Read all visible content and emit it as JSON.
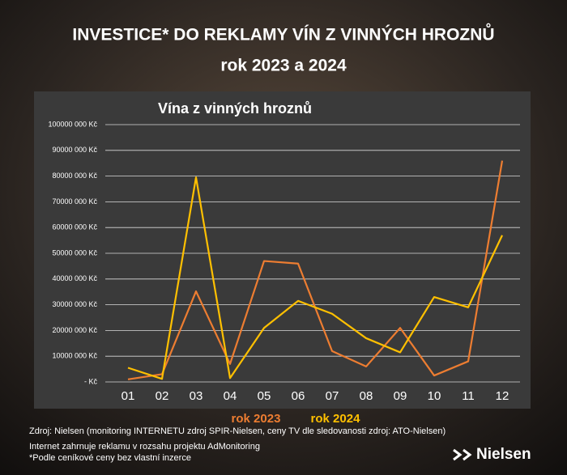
{
  "header": {
    "title": "INVESTICE* DO REKLAMY VÍN Z VINNÝCH HROZNŮ",
    "subtitle": "rok 2023 a 2024"
  },
  "chart_data": {
    "type": "line",
    "title": "Vína z vinných hroznů",
    "categories": [
      "01",
      "02",
      "03",
      "04",
      "05",
      "06",
      "07",
      "08",
      "09",
      "10",
      "11",
      "12"
    ],
    "series": [
      {
        "name": "rok 2023",
        "color": "#ed7d31",
        "values": [
          1000000,
          3000000,
          35200000,
          7000000,
          47000000,
          46000000,
          12000000,
          6000000,
          21000000,
          2500000,
          8000000,
          86000000
        ]
      },
      {
        "name": "rok 2024",
        "color": "#ffc000",
        "values": [
          5500000,
          1200000,
          79500000,
          1500000,
          21000000,
          31500000,
          26500000,
          17000000,
          11500000,
          33000000,
          29000000,
          57000000
        ]
      }
    ],
    "ylim": [
      0,
      100000000
    ],
    "yticks": [
      {
        "value": 0,
        "label": "- Kč"
      },
      {
        "value": 10000000,
        "label": "10000 000 Kč"
      },
      {
        "value": 20000000,
        "label": "20000 000 Kč"
      },
      {
        "value": 30000000,
        "label": "30000 000 Kč"
      },
      {
        "value": 40000000,
        "label": "40000 000 Kč"
      },
      {
        "value": 50000000,
        "label": "50000 000 Kč"
      },
      {
        "value": 60000000,
        "label": "60000 000 Kč"
      },
      {
        "value": 70000000,
        "label": "70000 000 Kč"
      },
      {
        "value": 80000000,
        "label": "80000 000 Kč"
      },
      {
        "value": 90000000,
        "label": "90000 000 Kč"
      },
      {
        "value": 100000000,
        "label": "100000 000 Kč"
      }
    ],
    "grid": true,
    "legend": "bottom"
  },
  "notes": [
    "Zdroj: Nielsen (monitoring INTERNETU zdroj SPIR-Nielsen, ceny TV dle sledovanosti zdroj: ATO-Nielsen)",
    "Internet zahrnuje reklamu v rozsahu projektu AdMonitoring",
    "*Podle ceníkové ceny bez vlastní inzerce"
  ],
  "brand": "Nielsen"
}
